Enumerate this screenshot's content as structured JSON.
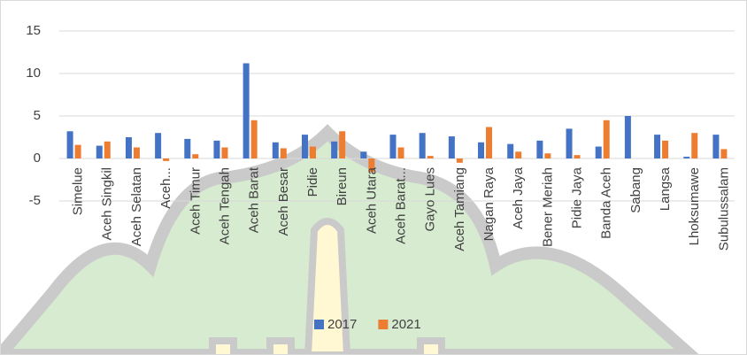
{
  "chart_data": {
    "type": "bar",
    "categories": [
      "Simelue",
      "Aceh Singkil",
      "Aceh Selatan",
      "Aceh...",
      "Aceh Timur",
      "Aceh Tengah",
      "Aceh Barat",
      "Aceh Besar",
      "Pidie",
      "Bireun",
      "Aceh Utara",
      "Aceh Barat...",
      "Gayo Lues",
      "Aceh Tamiang",
      "Nagan Raya",
      "Aceh Jaya",
      "Bener Meriah",
      "Pidie Jaya",
      "Banda Aceh",
      "Sabang",
      "Langsa",
      "Lhoksumawe",
      "Subulussalam"
    ],
    "series": [
      {
        "name": "2017",
        "color": "#4472c4",
        "values": [
          3.2,
          1.5,
          2.5,
          3.0,
          2.3,
          2.1,
          11.2,
          1.9,
          2.8,
          2.0,
          0.8,
          2.8,
          3.0,
          2.6,
          1.9,
          1.7,
          2.1,
          3.5,
          1.4,
          5.0,
          2.8,
          0.2,
          2.8
        ]
      },
      {
        "name": "2021",
        "color": "#ed7d31",
        "values": [
          1.6,
          2.0,
          1.3,
          -0.3,
          0.5,
          1.3,
          4.5,
          1.2,
          1.4,
          3.2,
          -1.6,
          1.3,
          0.3,
          -0.5,
          3.7,
          0.8,
          0.6,
          0.4,
          4.5,
          0,
          2.1,
          3.0,
          1.1
        ]
      }
    ],
    "ylim": [
      -5,
      15
    ],
    "yticks": [
      -5,
      0,
      5,
      10,
      15
    ],
    "grid": true,
    "legend": "bottom"
  }
}
